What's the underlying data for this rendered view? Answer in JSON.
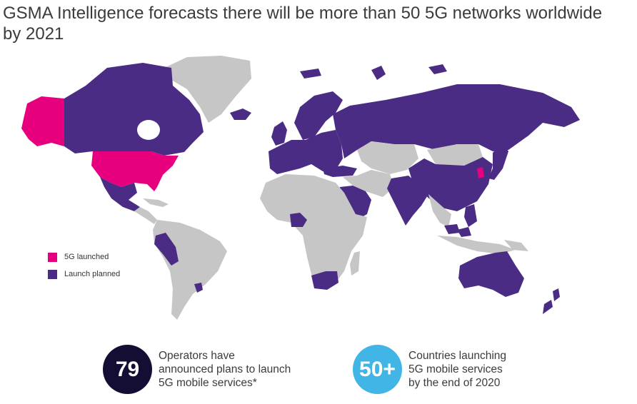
{
  "title": "GSMA Intelligence forecasts there will be more than 50 5G networks worldwide by 2021",
  "colors": {
    "launched": "#e6007e",
    "planned": "#4b2c85",
    "other": "#c6c6c6",
    "circle_dark": "#140e34",
    "circle_light": "#41b6e6"
  },
  "legend": [
    {
      "label": "5G launched",
      "color": "#e6007e"
    },
    {
      "label": "Launch planned",
      "color": "#4b2c85"
    }
  ],
  "stats": [
    {
      "value": "79",
      "text": "Operators have\nannounced plans to launch\n5G mobile services*"
    },
    {
      "value": "50+",
      "text": "Countries launching\n5G mobile services\nby the end of 2020"
    }
  ],
  "map_regions": {
    "launched": [
      "Alaska",
      "United States",
      "South Korea"
    ],
    "planned": [
      "Canada",
      "Mexico",
      "Peru",
      "Uruguay",
      "Europe",
      "Russia",
      "Turkey",
      "Saudi Arabia",
      "UAE",
      "Nigeria",
      "South Africa",
      "India",
      "China",
      "Japan",
      "Philippines",
      "Indonesia (partial)",
      "Australia",
      "New Zealand"
    ]
  }
}
